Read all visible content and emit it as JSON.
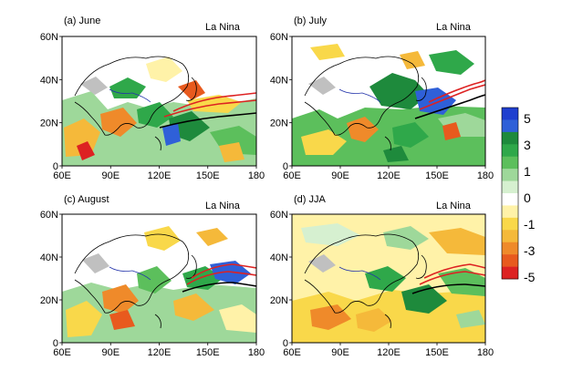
{
  "panels": [
    {
      "title": "(a) June",
      "tag": "La Nina"
    },
    {
      "title": "(b) July",
      "tag": "La Nina"
    },
    {
      "title": "(c) August",
      "tag": "La Nina"
    },
    {
      "title": "(d) JJA",
      "tag": "La Nina"
    }
  ],
  "x_ticks": [
    "60E",
    "90E",
    "120E",
    "150E",
    "180"
  ],
  "y_ticks": [
    "60N",
    "40N",
    "20N",
    "0"
  ],
  "colorbar": {
    "labels": [
      "5",
      "3",
      "1",
      "0",
      "-1",
      "-3",
      "-5"
    ],
    "colors": [
      "#1f3fcf",
      "#2f60d8",
      "#1e8a3c",
      "#2fa84a",
      "#5cbf5c",
      "#9ed89a",
      "#d6f0d0",
      "#ffffff",
      "#fff2a8",
      "#f9d84a",
      "#f5b93a",
      "#ef8a2a",
      "#e85a1e",
      "#dd2222"
    ]
  },
  "chart_data": {
    "type": "heatmap",
    "x_range": [
      "60E",
      "180"
    ],
    "y_range": [
      "0",
      "60N"
    ],
    "colorbar_range": [
      -5,
      5
    ]
  }
}
